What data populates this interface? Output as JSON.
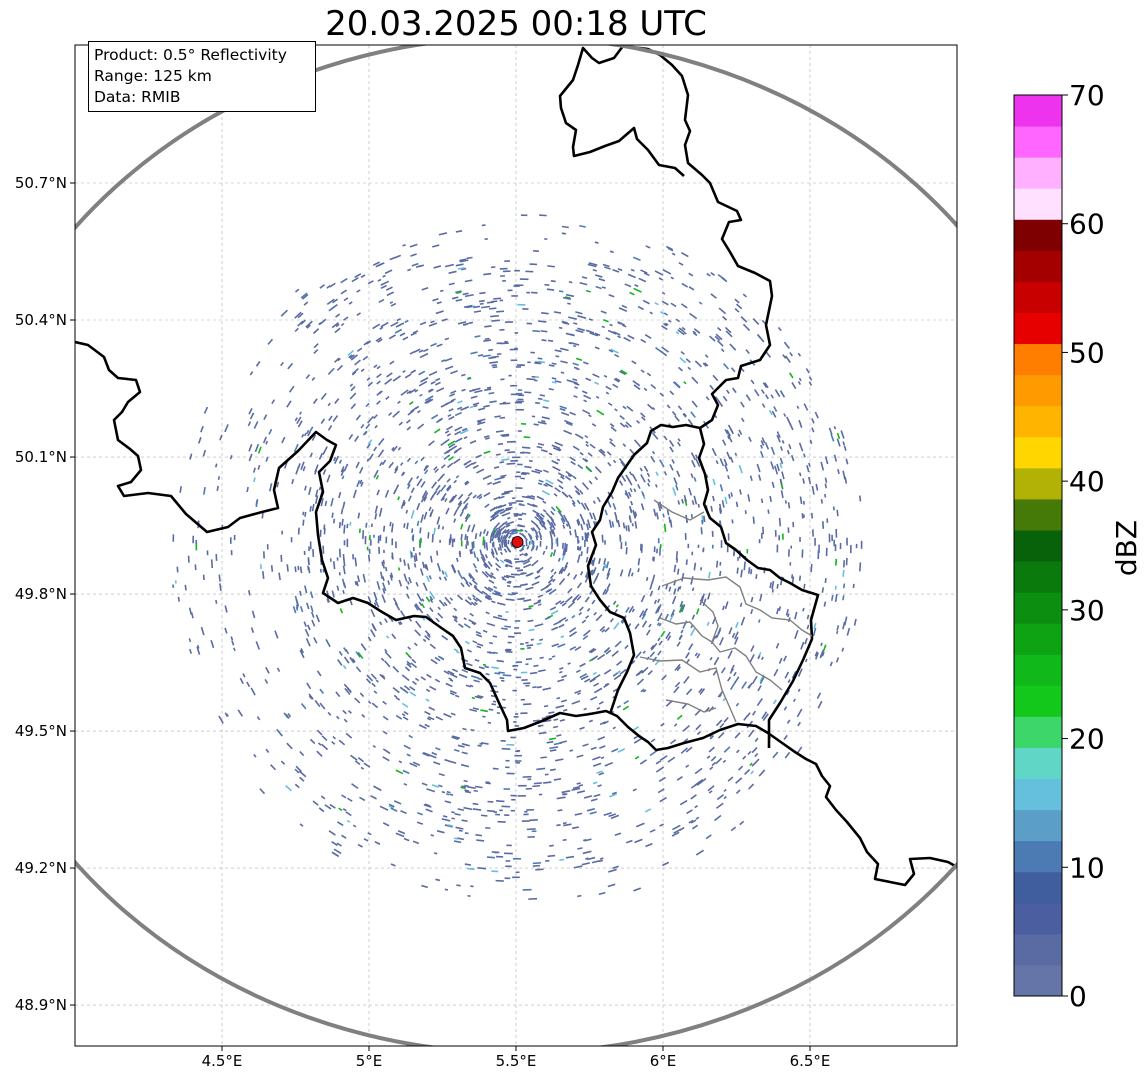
{
  "map": {
    "title": "20.03.2025 00:18 UTC",
    "info": {
      "product": "Product: 0.5° Reflectivity",
      "range": "Range: 125 km",
      "data_source": "Data: RMIB"
    },
    "extent": {
      "lon": [
        4.0,
        7.0
      ],
      "lat": [
        48.8,
        51.0
      ]
    },
    "lon_ticks": [
      {
        "value": 4.5,
        "label": "4.5°E"
      },
      {
        "value": 5.0,
        "label": "5°E"
      },
      {
        "value": 5.5,
        "label": "5.5°E"
      },
      {
        "value": 6.0,
        "label": "6°E"
      },
      {
        "value": 6.5,
        "label": "6.5°E"
      }
    ],
    "lat_ticks": [
      {
        "value": 50.7,
        "label": "50.7°N"
      },
      {
        "value": 50.4,
        "label": "50.4°N"
      },
      {
        "value": 50.1,
        "label": "50.1°N"
      },
      {
        "value": 49.8,
        "label": "49.8°N"
      },
      {
        "value": 49.5,
        "label": "49.5°N"
      },
      {
        "value": 49.2,
        "label": "49.2°N"
      },
      {
        "value": 48.9,
        "label": "48.9°N"
      }
    ],
    "radar_site": {
      "lon": 5.505,
      "lat": 49.914
    },
    "range_ring_km": 125,
    "colors": {
      "border": "#000000",
      "subdivision": "#808080",
      "ring": "#808080",
      "grid": "#b0b0b0",
      "radar_site": "#e01010"
    }
  },
  "colorbar": {
    "label": "dBZ",
    "min": 0,
    "max": 70,
    "step": 2.5,
    "tick_labels": [
      "0",
      "10",
      "20",
      "30",
      "40",
      "50",
      "60",
      "70"
    ],
    "colors": [
      "#6675a8",
      "#5a6ba3",
      "#4a5ea0",
      "#405d9e",
      "#4c7ab3",
      "#5b9fc8",
      "#64c0dd",
      "#5fd6c6",
      "#3dd66b",
      "#14c81b",
      "#10b81a",
      "#0ea313",
      "#0c8f10",
      "#0a7a0c",
      "#08620a",
      "#467a08",
      "#b2b206",
      "#ffd600",
      "#ffb400",
      "#ff9a00",
      "#ff7e00",
      "#e60000",
      "#c80000",
      "#a40000",
      "#7e0000",
      "#ffe0ff",
      "#ffb0ff",
      "#ff66ff",
      "#ee33ee"
    ]
  }
}
